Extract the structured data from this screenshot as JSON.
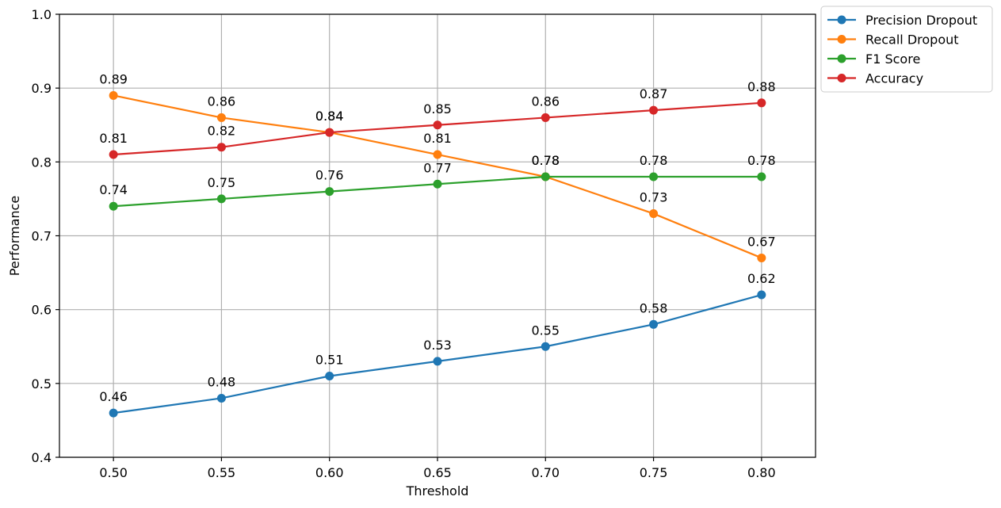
{
  "chart_data": {
    "type": "line",
    "x": [
      0.5,
      0.55,
      0.6,
      0.65,
      0.7,
      0.75,
      0.8
    ],
    "x_tick_labels": [
      "0.50",
      "0.55",
      "0.60",
      "0.65",
      "0.70",
      "0.75",
      "0.80"
    ],
    "y_ticks": [
      0.4,
      0.5,
      0.6,
      0.7,
      0.8,
      0.9,
      1.0
    ],
    "y_tick_labels": [
      "0.4",
      "0.5",
      "0.6",
      "0.7",
      "0.8",
      "0.9",
      "1.0"
    ],
    "xlim": [
      0.475,
      0.825
    ],
    "ylim": [
      0.4,
      1.0
    ],
    "xlabel": "Threshold",
    "ylabel": "Performance",
    "title": "",
    "grid": true,
    "legend_position": "outside-top-right",
    "series": [
      {
        "name": "Precision Dropout",
        "color": "#1f77b4",
        "values": [
          0.46,
          0.48,
          0.51,
          0.53,
          0.55,
          0.58,
          0.62
        ],
        "labels": [
          "0.46",
          "0.48",
          "0.51",
          "0.53",
          "0.55",
          "0.58",
          "0.62"
        ]
      },
      {
        "name": "Recall Dropout",
        "color": "#ff7f0e",
        "values": [
          0.89,
          0.86,
          0.84,
          0.81,
          0.78,
          0.73,
          0.67
        ],
        "labels": [
          "0.89",
          "0.86",
          "0.84",
          "0.81",
          "0.78",
          "0.73",
          "0.67"
        ]
      },
      {
        "name": "F1 Score",
        "color": "#2ca02c",
        "values": [
          0.74,
          0.75,
          0.76,
          0.77,
          0.78,
          0.78,
          0.78
        ],
        "labels": [
          "0.74",
          "0.75",
          "0.76",
          "0.77",
          "0.78",
          "0.78",
          "0.78"
        ]
      },
      {
        "name": "Accuracy",
        "color": "#d62728",
        "values": [
          0.81,
          0.82,
          0.84,
          0.85,
          0.86,
          0.87,
          0.88
        ],
        "labels": [
          "0.81",
          "0.82",
          "0.84",
          "0.85",
          "0.86",
          "0.87",
          "0.88"
        ]
      }
    ]
  }
}
